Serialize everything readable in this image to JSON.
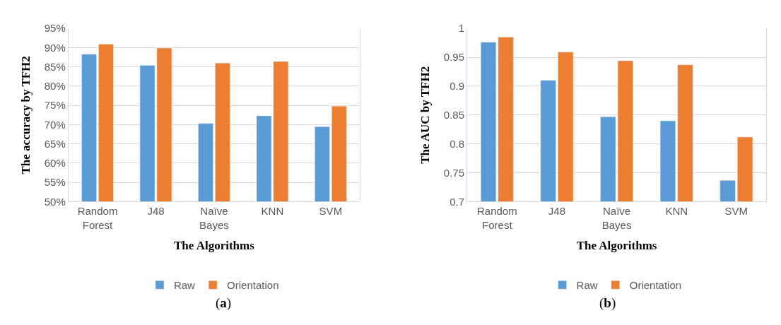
{
  "chart_data": [
    {
      "type": "bar",
      "xlabel": "The Algorithms",
      "ylabel": "The accuracy by TFH2",
      "categories": [
        "Random Forest",
        "J48",
        "Naïve Bayes",
        "KNN",
        "SVM"
      ],
      "series": [
        {
          "name": "Raw",
          "color": "#5b9bd5",
          "values": [
            88.3,
            85.4,
            70.3,
            72.3,
            69.5
          ]
        },
        {
          "name": "Orientation",
          "color": "#ed7d31",
          "values": [
            90.9,
            89.9,
            86.0,
            86.4,
            74.8
          ]
        }
      ],
      "ylim": [
        50,
        95
      ],
      "yticks": [
        {
          "value": 50,
          "label": "50%"
        },
        {
          "value": 55,
          "label": "55%"
        },
        {
          "value": 60,
          "label": "60%"
        },
        {
          "value": 65,
          "label": "65%"
        },
        {
          "value": 70,
          "label": "70%"
        },
        {
          "value": 75,
          "label": "75%"
        },
        {
          "value": 80,
          "label": "80%"
        },
        {
          "value": 85,
          "label": "85%"
        },
        {
          "value": 90,
          "label": "90%"
        },
        {
          "value": 95,
          "label": "95%"
        }
      ],
      "grid": "y",
      "legend": "bottom",
      "annotations": [
        "(a)"
      ]
    },
    {
      "type": "bar",
      "xlabel": "The Algorithms",
      "ylabel": "The AUC by TFH2",
      "categories": [
        "Random Forest",
        "J48",
        "Naïve Bayes",
        "KNN",
        "SVM"
      ],
      "series": [
        {
          "name": "Raw",
          "color": "#5b9bd5",
          "values": [
            0.976,
            0.91,
            0.847,
            0.84,
            0.737
          ]
        },
        {
          "name": "Orientation",
          "color": "#ed7d31",
          "values": [
            0.985,
            0.959,
            0.944,
            0.937,
            0.812
          ]
        }
      ],
      "ylim": [
        0.7,
        1
      ],
      "yticks": [
        0.7,
        0.75,
        0.8,
        0.85,
        0.9,
        0.95,
        1
      ],
      "grid": "y",
      "legend": "bottom",
      "annotations": [
        "(b)"
      ]
    }
  ]
}
